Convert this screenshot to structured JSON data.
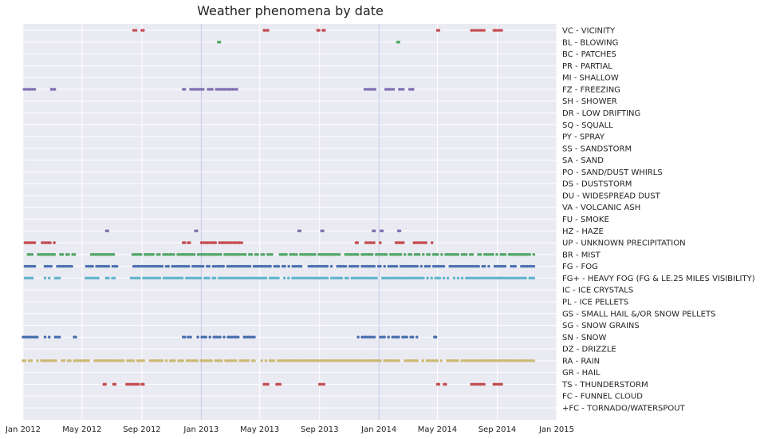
{
  "chart_data": {
    "type": "scatter",
    "title": "Weather phenomena by date",
    "xlabel": "",
    "ylabel": "",
    "xlim": [
      "2012-01-01",
      "2015-01-01"
    ],
    "x_ticks": [
      "Jan 2012",
      "May 2012",
      "Sep 2012",
      "Jan 2013",
      "May 2013",
      "Sep 2013",
      "Jan 2014",
      "May 2014",
      "Sep 2014",
      "Jan 2015"
    ],
    "x_tick_dates": [
      "2012-01-01",
      "2012-05-01",
      "2012-09-01",
      "2013-01-01",
      "2013-05-01",
      "2013-09-01",
      "2014-01-01",
      "2014-05-01",
      "2014-09-01",
      "2015-01-01"
    ],
    "y_categories": [
      "+FC - TORNADO/WATERSPOUT",
      "FC - FUNNEL CLOUD",
      "TS - THUNDERSTORM",
      "GR - HAIL",
      "RA - RAIN",
      "DZ - DRIZZLE",
      "SN - SNOW",
      "SG - SNOW GRAINS",
      "GS - SMALL HAIL &/OR SNOW PELLETS",
      "PL - ICE PELLETS",
      "IC - ICE CRYSTALS",
      "FG+ - HEAVY FOG (FG & LE.25 MILES VISIBILITY)",
      "FG - FOG",
      "BR - MIST",
      "UP - UNKNOWN PRECIPITATION",
      "HZ - HAZE",
      "FU - SMOKE",
      "VA - VOLCANIC ASH",
      "DU - WIDESPREAD DUST",
      "DS - DUSTSTORM",
      "PO - SAND/DUST WHIRLS",
      "SA - SAND",
      "SS - SANDSTORM",
      "PY - SPRAY",
      "SQ - SQUALL",
      "DR - LOW DRIFTING",
      "SH - SHOWER",
      "FZ - FREEZING",
      "MI - SHALLOW",
      "PR - PARTIAL",
      "BC - PATCHES",
      "BL - BLOWING",
      "VC - VICINITY"
    ],
    "grid": true,
    "background": "#eaeaf2",
    "series": [
      {
        "category": "VC - VICINITY",
        "color": "#c44e52",
        "ranges": [
          [
            "2012-08-15",
            "2012-08-20"
          ],
          [
            "2012-09-01",
            "2012-09-04"
          ],
          [
            "2013-05-10",
            "2013-05-18"
          ],
          [
            "2013-08-28",
            "2013-08-31"
          ],
          [
            "2013-09-08",
            "2013-09-11"
          ],
          [
            "2014-05-01",
            "2014-05-04"
          ],
          [
            "2014-07-10",
            "2014-08-05"
          ],
          [
            "2014-08-25",
            "2014-09-10"
          ]
        ]
      },
      {
        "category": "BL - BLOWING",
        "color": "#55a868",
        "ranges": [
          [
            "2013-02-05",
            "2013-02-08"
          ],
          [
            "2014-02-08",
            "2014-02-11"
          ]
        ]
      },
      {
        "category": "FZ - FREEZING",
        "color": "#8172b2",
        "ranges": [
          [
            "2012-01-03",
            "2012-01-25"
          ],
          [
            "2012-02-28",
            "2012-03-06"
          ],
          [
            "2012-11-25",
            "2012-11-28"
          ],
          [
            "2012-12-10",
            "2013-01-05"
          ],
          [
            "2013-01-15",
            "2013-03-15"
          ],
          [
            "2013-11-25",
            "2014-01-01"
          ],
          [
            "2014-01-15",
            "2014-02-20"
          ],
          [
            "2014-03-05",
            "2014-03-12"
          ]
        ]
      },
      {
        "category": "HZ - HAZE",
        "color": "#8172b2",
        "ranges": [
          [
            "2012-06-20",
            "2012-06-23"
          ],
          [
            "2012-12-20",
            "2012-12-23"
          ],
          [
            "2013-07-20",
            "2013-07-23"
          ],
          [
            "2013-09-05",
            "2013-09-08"
          ],
          [
            "2013-12-20",
            "2013-12-23"
          ],
          [
            "2014-01-05",
            "2014-01-08"
          ],
          [
            "2014-02-10",
            "2014-02-13"
          ]
        ]
      },
      {
        "category": "UP - UNKNOWN PRECIPITATION",
        "color": "#c44e52",
        "ranges": [
          [
            "2012-01-05",
            "2012-01-25"
          ],
          [
            "2012-02-05",
            "2012-03-05"
          ],
          [
            "2012-11-25",
            "2012-11-28"
          ],
          [
            "2012-12-05",
            "2012-12-08"
          ],
          [
            "2012-12-28",
            "2013-03-25"
          ],
          [
            "2013-11-15",
            "2013-11-18"
          ],
          [
            "2013-12-05",
            "2014-01-12"
          ],
          [
            "2014-02-05",
            "2014-02-20"
          ],
          [
            "2014-03-10",
            "2014-04-20"
          ]
        ]
      },
      {
        "category": "BR - MIST",
        "color": "#55a868",
        "ranges": [
          [
            "2012-01-03",
            "2012-04-20"
          ],
          [
            "2012-05-20",
            "2012-07-05"
          ],
          [
            "2012-08-05",
            "2014-11-15"
          ]
        ]
      },
      {
        "category": "FG - FOG",
        "color": "#4c72b0",
        "ranges": [
          [
            "2012-01-05",
            "2012-01-25"
          ],
          [
            "2012-02-15",
            "2012-04-10"
          ],
          [
            "2012-05-10",
            "2012-07-20"
          ],
          [
            "2012-08-15",
            "2013-07-25"
          ],
          [
            "2013-08-10",
            "2014-11-15"
          ]
        ]
      },
      {
        "category": "FG+ - HEAVY FOG (FG & LE.25 MILES VISIBILITY)",
        "color": "#64b5cd",
        "ranges": [
          [
            "2012-01-05",
            "2012-01-20"
          ],
          [
            "2012-02-15",
            "2012-03-20"
          ],
          [
            "2012-05-05",
            "2012-07-15"
          ],
          [
            "2012-08-10",
            "2014-11-15"
          ]
        ]
      },
      {
        "category": "SN - SNOW",
        "color": "#4c72b0",
        "ranges": [
          [
            "2012-01-01",
            "2012-01-30"
          ],
          [
            "2012-02-15",
            "2012-03-20"
          ],
          [
            "2012-04-15",
            "2012-04-18"
          ],
          [
            "2012-11-25",
            "2012-11-28"
          ],
          [
            "2012-12-05",
            "2012-12-10"
          ],
          [
            "2012-12-25",
            "2013-04-20"
          ],
          [
            "2013-11-15",
            "2014-03-20"
          ],
          [
            "2014-04-25",
            "2014-04-28"
          ]
        ]
      },
      {
        "category": "RA - RAIN",
        "color": "#ccb974",
        "ranges": [
          [
            "2012-01-01",
            "2013-04-20"
          ],
          [
            "2013-05-01",
            "2014-03-25"
          ],
          [
            "2014-04-01",
            "2014-11-15"
          ]
        ]
      },
      {
        "category": "TS - THUNDERSTORM",
        "color": "#c44e52",
        "ranges": [
          [
            "2012-06-15",
            "2012-06-18"
          ],
          [
            "2012-07-05",
            "2012-07-08"
          ],
          [
            "2012-08-01",
            "2012-08-25"
          ],
          [
            "2012-09-01",
            "2012-09-04"
          ],
          [
            "2013-05-10",
            "2013-05-18"
          ],
          [
            "2013-06-05",
            "2013-06-12"
          ],
          [
            "2013-09-01",
            "2013-09-10"
          ],
          [
            "2014-05-01",
            "2014-05-04"
          ],
          [
            "2014-05-15",
            "2014-05-18"
          ],
          [
            "2014-07-10",
            "2014-08-05"
          ],
          [
            "2014-08-25",
            "2014-09-10"
          ]
        ]
      }
    ]
  }
}
